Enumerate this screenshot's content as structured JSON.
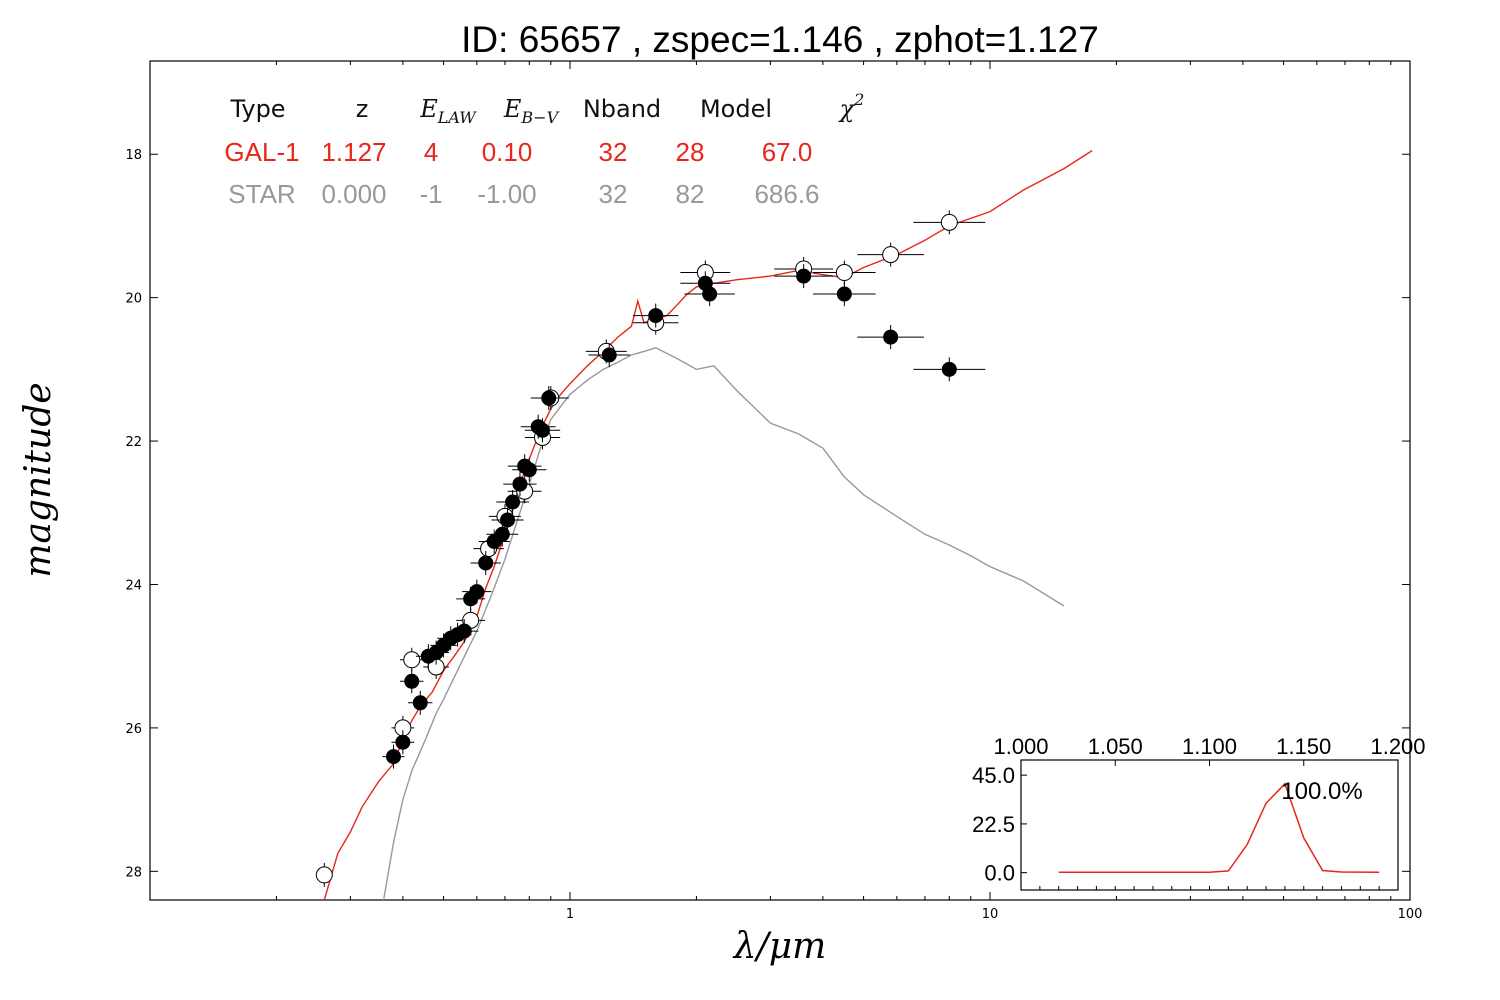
{
  "chart_data": {
    "type": "scatter",
    "title": "ID:  65657 , zspec=1.146 , zphot=1.127",
    "xlabel": "λ/μm",
    "ylabel": "magnitude",
    "x_scale": "log",
    "xlim": [
      0.1,
      100
    ],
    "ylim": [
      28.4,
      16.7
    ],
    "x_ticks": [
      {
        "value": 1,
        "label": "1"
      },
      {
        "value": 10,
        "label": "10"
      },
      {
        "value": 100,
        "label": "100"
      }
    ],
    "y_ticks": [
      {
        "value": 18,
        "label": "18"
      },
      {
        "value": 20,
        "label": "20"
      },
      {
        "value": 22,
        "label": "22"
      },
      {
        "value": 24,
        "label": "24"
      },
      {
        "value": 26,
        "label": "26"
      },
      {
        "value": 28,
        "label": "28"
      }
    ],
    "grid": false,
    "fit_table": {
      "headers": [
        {
          "text": "Type",
          "math": false
        },
        {
          "text": "z",
          "math": false
        },
        {
          "text": "E",
          "sub": "LAW",
          "math": true
        },
        {
          "text": "E",
          "sub": "B−V",
          "math": true
        },
        {
          "text": "Nband",
          "math": false
        },
        {
          "text": "Model",
          "math": false
        },
        {
          "text": "χ",
          "sup": "2",
          "math": true
        }
      ],
      "rows": [
        {
          "color": "#e8261a",
          "cells": [
            "GAL-1",
            "1.127",
            "4",
            "0.10",
            "32",
            "28",
            "67.0"
          ]
        },
        {
          "color": "#999999",
          "cells": [
            "STAR",
            "0.000",
            "-1",
            "-1.00",
            "32",
            "82",
            "686.6"
          ]
        }
      ]
    },
    "series": [
      {
        "name": "GAL-1",
        "kind": "line",
        "color": "#e8261a",
        "points": [
          [
            0.26,
            28.4
          ],
          [
            0.28,
            27.75
          ],
          [
            0.3,
            27.45
          ],
          [
            0.32,
            27.1
          ],
          [
            0.35,
            26.75
          ],
          [
            0.38,
            26.5
          ],
          [
            0.4,
            26.15
          ],
          [
            0.42,
            25.9
          ],
          [
            0.44,
            25.7
          ],
          [
            0.47,
            25.5
          ],
          [
            0.5,
            25.2
          ],
          [
            0.53,
            25.0
          ],
          [
            0.56,
            24.8
          ],
          [
            0.6,
            24.45
          ],
          [
            0.63,
            24.05
          ],
          [
            0.66,
            23.75
          ],
          [
            0.7,
            23.3
          ],
          [
            0.73,
            22.95
          ],
          [
            0.76,
            22.6
          ],
          [
            0.8,
            22.25
          ],
          [
            0.85,
            21.85
          ],
          [
            0.9,
            21.55
          ],
          [
            0.95,
            21.35
          ],
          [
            1.0,
            21.2
          ],
          [
            1.1,
            20.95
          ],
          [
            1.2,
            20.75
          ],
          [
            1.3,
            20.55
          ],
          [
            1.4,
            20.4
          ],
          [
            1.45,
            20.05
          ],
          [
            1.5,
            20.35
          ],
          [
            1.6,
            20.3
          ],
          [
            1.7,
            20.25
          ],
          [
            1.8,
            20.1
          ],
          [
            1.9,
            19.95
          ],
          [
            2.0,
            19.85
          ],
          [
            2.2,
            19.8
          ],
          [
            2.5,
            19.75
          ],
          [
            3.0,
            19.7
          ],
          [
            3.5,
            19.62
          ],
          [
            4.0,
            19.68
          ],
          [
            4.5,
            19.72
          ],
          [
            5.0,
            19.58
          ],
          [
            6.0,
            19.4
          ],
          [
            7.0,
            19.2
          ],
          [
            8.0,
            19.0
          ],
          [
            10.0,
            18.8
          ],
          [
            12.0,
            18.5
          ],
          [
            15.0,
            18.2
          ],
          [
            17.5,
            17.95
          ]
        ]
      },
      {
        "name": "STAR",
        "kind": "line",
        "color": "#999999",
        "points": [
          [
            0.36,
            28.4
          ],
          [
            0.38,
            27.6
          ],
          [
            0.4,
            27.0
          ],
          [
            0.42,
            26.6
          ],
          [
            0.45,
            26.2
          ],
          [
            0.48,
            25.8
          ],
          [
            0.5,
            25.6
          ],
          [
            0.55,
            25.1
          ],
          [
            0.6,
            24.65
          ],
          [
            0.65,
            24.15
          ],
          [
            0.7,
            23.65
          ],
          [
            0.75,
            23.1
          ],
          [
            0.8,
            22.6
          ],
          [
            0.85,
            22.1
          ],
          [
            0.9,
            21.7
          ],
          [
            1.0,
            21.35
          ],
          [
            1.1,
            21.15
          ],
          [
            1.2,
            21.0
          ],
          [
            1.3,
            20.9
          ],
          [
            1.4,
            20.8
          ],
          [
            1.5,
            20.75
          ],
          [
            1.6,
            20.7
          ],
          [
            1.8,
            20.85
          ],
          [
            2.0,
            21.0
          ],
          [
            2.2,
            20.95
          ],
          [
            2.5,
            21.3
          ],
          [
            3.0,
            21.75
          ],
          [
            3.5,
            21.9
          ],
          [
            4.0,
            22.1
          ],
          [
            4.5,
            22.5
          ],
          [
            5.0,
            22.75
          ],
          [
            6.0,
            23.05
          ],
          [
            7.0,
            23.3
          ],
          [
            8.0,
            23.45
          ],
          [
            9.0,
            23.6
          ],
          [
            10.0,
            23.75
          ],
          [
            12.0,
            23.95
          ],
          [
            15.0,
            24.3
          ]
        ]
      },
      {
        "name": "observed",
        "kind": "points",
        "marker": "filled",
        "color": "#000000",
        "points": [
          [
            0.38,
            26.4
          ],
          [
            0.4,
            26.2
          ],
          [
            0.42,
            25.35
          ],
          [
            0.44,
            25.65
          ],
          [
            0.46,
            25.0
          ],
          [
            0.48,
            24.95
          ],
          [
            0.5,
            24.85
          ],
          [
            0.52,
            24.75
          ],
          [
            0.54,
            24.7
          ],
          [
            0.56,
            24.65
          ],
          [
            0.58,
            24.2
          ],
          [
            0.6,
            24.1
          ],
          [
            0.63,
            23.7
          ],
          [
            0.66,
            23.4
          ],
          [
            0.69,
            23.3
          ],
          [
            0.71,
            23.1
          ],
          [
            0.73,
            22.85
          ],
          [
            0.76,
            22.6
          ],
          [
            0.78,
            22.35
          ],
          [
            0.8,
            22.4
          ],
          [
            0.84,
            21.8
          ],
          [
            0.86,
            21.85
          ],
          [
            0.89,
            21.4
          ],
          [
            1.24,
            20.8
          ],
          [
            1.6,
            20.25
          ],
          [
            2.1,
            19.8
          ],
          [
            2.15,
            19.95
          ],
          [
            3.6,
            19.7
          ],
          [
            4.5,
            19.95
          ],
          [
            5.8,
            20.55
          ],
          [
            8.0,
            21.0
          ]
        ]
      },
      {
        "name": "model",
        "kind": "points",
        "marker": "open",
        "color": "#000000",
        "points": [
          [
            0.26,
            28.05
          ],
          [
            0.4,
            26.0
          ],
          [
            0.42,
            25.05
          ],
          [
            0.48,
            25.15
          ],
          [
            0.58,
            24.5
          ],
          [
            0.64,
            23.5
          ],
          [
            0.7,
            23.05
          ],
          [
            0.78,
            22.7
          ],
          [
            0.86,
            21.95
          ],
          [
            0.9,
            21.4
          ],
          [
            1.22,
            20.75
          ],
          [
            1.6,
            20.35
          ],
          [
            2.1,
            19.65
          ],
          [
            3.6,
            19.6
          ],
          [
            4.5,
            19.65
          ],
          [
            5.8,
            19.4
          ],
          [
            8.0,
            18.95
          ]
        ]
      }
    ],
    "inset": {
      "type": "line",
      "color": "#e8261a",
      "xlim": [
        1.0,
        1.2
      ],
      "ylim": [
        -8,
        52
      ],
      "x_ticks": [
        {
          "value": 1.0,
          "label": "1.000"
        },
        {
          "value": 1.05,
          "label": "1.050"
        },
        {
          "value": 1.1,
          "label": "1.100"
        },
        {
          "value": 1.15,
          "label": "1.150"
        },
        {
          "value": 1.2,
          "label": "1.200"
        }
      ],
      "y_ticks": [
        {
          "value": 0.0,
          "label": "0.0"
        },
        {
          "value": 22.5,
          "label": "22.5"
        },
        {
          "value": 45.0,
          "label": "45.0"
        }
      ],
      "annotation": "100.0%",
      "points": [
        [
          1.02,
          0.2
        ],
        [
          1.05,
          0.2
        ],
        [
          1.08,
          0.2
        ],
        [
          1.1,
          0.2
        ],
        [
          1.11,
          0.8
        ],
        [
          1.12,
          13
        ],
        [
          1.13,
          32
        ],
        [
          1.14,
          41
        ],
        [
          1.15,
          16
        ],
        [
          1.16,
          1
        ],
        [
          1.17,
          0.3
        ],
        [
          1.19,
          0.2
        ]
      ]
    }
  }
}
